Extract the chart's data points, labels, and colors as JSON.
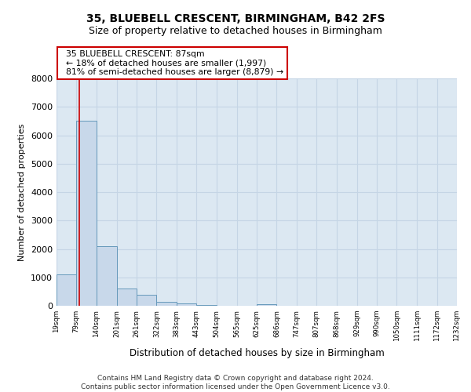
{
  "title1": "35, BLUEBELL CRESCENT, BIRMINGHAM, B42 2FS",
  "title2": "Size of property relative to detached houses in Birmingham",
  "xlabel": "Distribution of detached houses by size in Birmingham",
  "ylabel": "Number of detached properties",
  "footer1": "Contains HM Land Registry data © Crown copyright and database right 2024.",
  "footer2": "Contains public sector information licensed under the Open Government Licence v3.0.",
  "annotation_line1": "35 BLUEBELL CRESCENT: 87sqm",
  "annotation_line2": "← 18% of detached houses are smaller (1,997)",
  "annotation_line3": "81% of semi-detached houses are larger (8,879) →",
  "property_size": 87,
  "bin_edges": [
    19,
    79,
    140,
    201,
    261,
    322,
    383,
    443,
    504,
    565,
    625,
    686,
    747,
    807,
    868,
    929,
    990,
    1050,
    1111,
    1172,
    1232
  ],
  "bar_heights": [
    1100,
    6500,
    2100,
    600,
    380,
    150,
    75,
    30,
    10,
    0,
    65,
    0,
    0,
    0,
    0,
    0,
    0,
    0,
    0,
    0
  ],
  "bar_color": "#c8d8ea",
  "bar_edge_color": "#6699bb",
  "grid_color": "#c5d5e5",
  "background_color": "#dce8f2",
  "annotation_box_color": "#ffffff",
  "annotation_box_edge": "#cc0000",
  "property_line_color": "#cc0000",
  "ylim": [
    0,
    8000
  ],
  "yticks": [
    0,
    1000,
    2000,
    3000,
    4000,
    5000,
    6000,
    7000,
    8000
  ]
}
